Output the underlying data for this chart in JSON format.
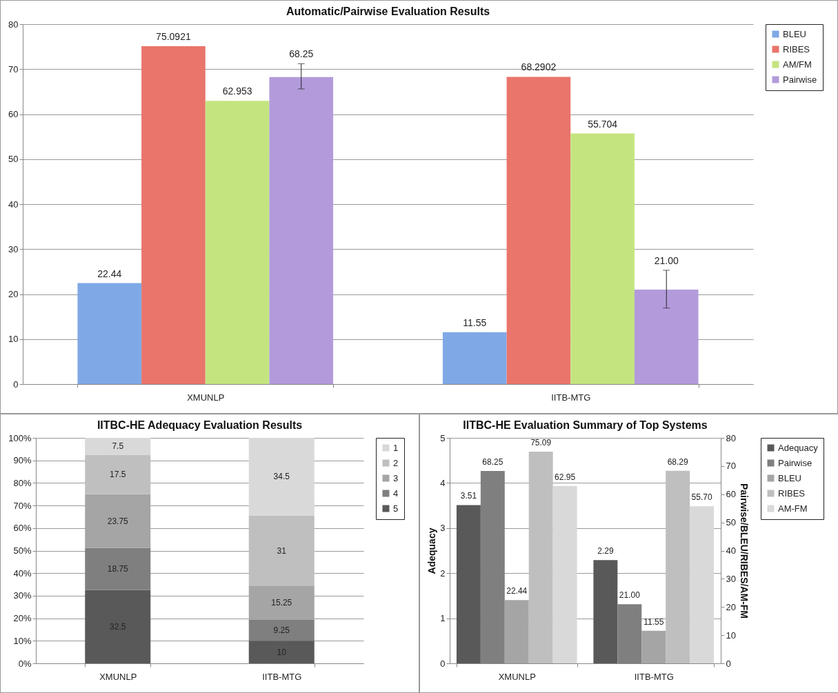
{
  "chart_data": [
    {
      "type": "bar",
      "title": "Automatic/Pairwise Evaluation Results",
      "categories": [
        "XMUNLP",
        "IITB-MTG"
      ],
      "ylim": [
        0,
        80
      ],
      "yticks": [
        0,
        10,
        20,
        30,
        40,
        50,
        60,
        70,
        80
      ],
      "grid": "y",
      "legend": "right",
      "series": [
        {
          "name": "BLEU",
          "color": "#7fa9e6",
          "values": [
            22.44,
            11.55
          ],
          "value_labels": [
            "22.44",
            "11.55"
          ]
        },
        {
          "name": "RIBES",
          "color": "#e9756b",
          "values": [
            75.0921,
            68.2902
          ],
          "value_labels": [
            "75.0921",
            "68.2902"
          ]
        },
        {
          "name": "AM/FM",
          "color": "#c4e480",
          "values": [
            62.953,
            55.704
          ],
          "value_labels": [
            "62.953",
            "55.704"
          ]
        },
        {
          "name": "Pairwise",
          "color": "#b39bdb",
          "values": [
            68.25,
            21.0
          ],
          "value_labels": [
            "68.25",
            "21.00"
          ],
          "errors": [
            [
              65.6,
              71.2
            ],
            [
              16.9,
              25.3
            ]
          ]
        }
      ]
    },
    {
      "type": "bar",
      "title": "IITBC-HE Adequacy Evaluation Results",
      "categories": [
        "XMUNLP",
        "IITB-MTG"
      ],
      "stacked": true,
      "ylim": [
        0,
        100
      ],
      "yticks": [
        {
          "value": 0,
          "label": "0%"
        },
        {
          "value": 10,
          "label": "10%"
        },
        {
          "value": 20,
          "label": "20%"
        },
        {
          "value": 30,
          "label": "30%"
        },
        {
          "value": 40,
          "label": "40%"
        },
        {
          "value": 50,
          "label": "50%"
        },
        {
          "value": 60,
          "label": "60%"
        },
        {
          "value": 70,
          "label": "70%"
        },
        {
          "value": 80,
          "label": "80%"
        },
        {
          "value": 90,
          "label": "90%"
        },
        {
          "value": 100,
          "label": "100%"
        }
      ],
      "grid": "y",
      "legend": "right",
      "data_labels": true,
      "series": [
        {
          "name": "5",
          "color": "#595959",
          "values": [
            32.5,
            10
          ]
        },
        {
          "name": "4",
          "color": "#7f7f7f",
          "values": [
            18.75,
            9.25
          ]
        },
        {
          "name": "3",
          "color": "#a5a5a5",
          "values": [
            23.75,
            15.25
          ]
        },
        {
          "name": "2",
          "color": "#bfbfbf",
          "values": [
            17.5,
            31
          ]
        },
        {
          "name": "1",
          "color": "#d9d9d9",
          "values": [
            7.5,
            34.5
          ]
        }
      ]
    },
    {
      "type": "bar",
      "title": "IITBC-HE Evaluation Summary of Top Systems",
      "categories": [
        "XMUNLP",
        "IITB-MTG"
      ],
      "ylabel": "Adequacy",
      "y2label": "Pairwise/BLEU/RIBES/AM-FM",
      "ylim": [
        0,
        5
      ],
      "yticks": [
        0,
        1,
        2,
        3,
        4,
        5
      ],
      "y2lim": [
        0,
        80
      ],
      "y2ticks": [
        0,
        10,
        20,
        30,
        40,
        50,
        60,
        70,
        80
      ],
      "grid": "y",
      "legend": "right",
      "series": [
        {
          "name": "Adequacy",
          "color": "#595959",
          "values": [
            3.51,
            2.29
          ],
          "value_labels": [
            "3.51",
            "2.29"
          ]
        },
        {
          "name": "Pairwise",
          "color": "#7f7f7f",
          "axis": "y2",
          "values": [
            68.25,
            21.0
          ],
          "value_labels": [
            "68.25",
            "21.00"
          ]
        },
        {
          "name": "BLEU",
          "color": "#a5a5a5",
          "axis": "y2",
          "values": [
            22.44,
            11.55
          ],
          "value_labels": [
            "22.44",
            "11.55"
          ]
        },
        {
          "name": "RIBES",
          "color": "#bfbfbf",
          "axis": "y2",
          "values": [
            75.09,
            68.29
          ],
          "value_labels": [
            "75.09",
            "68.29"
          ]
        },
        {
          "name": "AM-FM",
          "color": "#d9d9d9",
          "axis": "y2",
          "values": [
            62.95,
            55.7
          ],
          "value_labels": [
            "62.95",
            "55.70"
          ]
        }
      ]
    }
  ]
}
